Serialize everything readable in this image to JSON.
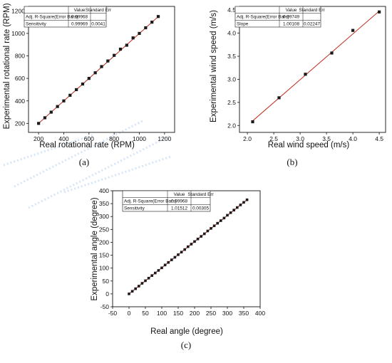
{
  "chart_data": [
    {
      "type": "scatter",
      "caption": "(a)",
      "xlabel": "Real rotational rate (RPM)",
      "ylabel": "Experimental rotational rate (RPM)",
      "xlim": [
        120,
        1280
      ],
      "ylim": [
        120,
        1240
      ],
      "xticks": [
        200,
        400,
        600,
        800,
        1000,
        1200
      ],
      "yticks": [
        200,
        400,
        600,
        800,
        1000,
        1200
      ],
      "x": [
        200,
        250,
        300,
        350,
        400,
        450,
        500,
        550,
        600,
        650,
        700,
        750,
        800,
        850,
        900,
        950,
        1000,
        1050,
        1100,
        1150
      ],
      "y": [
        200,
        250,
        300,
        350,
        400,
        450,
        500,
        550,
        600,
        650,
        705,
        755,
        805,
        860,
        895,
        960,
        1000,
        1050,
        1100,
        1150
      ],
      "fit_line": {
        "x": [
          200,
          1150
        ],
        "y": [
          200,
          1149
        ]
      },
      "fit_table": {
        "headers": [
          "",
          "Value",
          "Standard Err"
        ],
        "rows": [
          [
            "Adj. R-Square(Error Bars)",
            "0.99968",
            ""
          ],
          [
            "Sensitivity",
            "0.99969",
            "0.0041"
          ]
        ]
      }
    },
    {
      "type": "scatter",
      "caption": "(b)",
      "xlabel": "Real wind speed (m/s)",
      "ylabel": "Experimental wind speed (m/s)",
      "xlim": [
        1.85,
        4.62
      ],
      "ylim": [
        1.85,
        4.58
      ],
      "xticks": [
        2.0,
        2.5,
        3.0,
        3.5,
        4.0,
        4.5
      ],
      "yticks": [
        2.0,
        2.5,
        3.0,
        3.5,
        4.0,
        4.5
      ],
      "tick_format": 1,
      "x": [
        2.1,
        2.6,
        3.1,
        3.6,
        4.0,
        4.5
      ],
      "y": [
        2.08,
        2.6,
        3.11,
        3.57,
        4.06,
        4.46
      ],
      "fit_line": {
        "x": [
          2.1,
          4.5
        ],
        "y": [
          2.1,
          4.48
        ]
      },
      "fit_table": {
        "headers": [
          "",
          "Value",
          "Standard Err"
        ],
        "rows": [
          [
            "Adj. R-Square(Error Bars)",
            "0.99749",
            ""
          ],
          [
            "Slope",
            "1.00108",
            "0.02247"
          ]
        ]
      }
    },
    {
      "type": "scatter",
      "caption": "(c)",
      "xlabel": "Real angle (degree)",
      "ylabel": "Experimental angle (degree)",
      "xlim": [
        -50,
        400
      ],
      "ylim": [
        -50,
        400
      ],
      "xticks": [
        -50,
        0,
        50,
        100,
        150,
        200,
        250,
        300,
        350,
        400
      ],
      "yticks": [
        -50,
        0,
        50,
        100,
        150,
        200,
        250,
        300,
        350,
        400
      ],
      "x": [
        0,
        10,
        20,
        30,
        40,
        50,
        60,
        70,
        80,
        90,
        100,
        110,
        120,
        130,
        140,
        150,
        160,
        170,
        180,
        190,
        200,
        210,
        220,
        230,
        240,
        250,
        260,
        270,
        280,
        290,
        300,
        310,
        320,
        330,
        340,
        350,
        360
      ],
      "y": [
        0,
        10,
        20,
        30,
        41,
        51,
        61,
        71,
        81,
        91,
        101,
        112,
        122,
        132,
        142,
        152,
        162,
        172,
        183,
        193,
        203,
        213,
        223,
        233,
        244,
        254,
        264,
        274,
        284,
        294,
        305,
        315,
        325,
        335,
        345,
        355,
        365
      ],
      "fit_line": {
        "x": [
          0,
          362
        ],
        "y": [
          0,
          367
        ]
      },
      "fit_table": {
        "headers": [
          "",
          "Value",
          "Standard Err"
        ],
        "rows": [
          [
            "Adj. R-Square(Error Bars)",
            "0.99968",
            ""
          ],
          [
            "Sensitivity",
            "1.01512",
            "0.00305"
          ]
        ]
      }
    }
  ]
}
